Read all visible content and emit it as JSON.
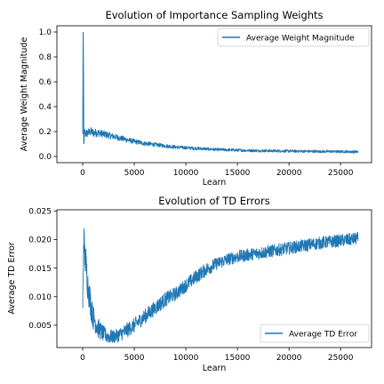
{
  "chart_data": [
    {
      "type": "line",
      "title": "Evolution of Importance Sampling Weights",
      "xlabel": "Learn",
      "ylabel": "Average Weight Magnitude",
      "xlim": [
        -2500,
        28000
      ],
      "ylim": [
        -0.05,
        1.05
      ],
      "xticks": [
        0,
        5000,
        10000,
        15000,
        20000,
        25000
      ],
      "xtick_labels": [
        "0",
        "5000",
        "10000",
        "15000",
        "20000",
        "25000"
      ],
      "yticks": [
        0.0,
        0.2,
        0.4,
        0.6,
        0.8,
        1.0
      ],
      "ytick_labels": [
        "0.0",
        "0.2",
        "0.4",
        "0.6",
        "0.8",
        "1.0"
      ],
      "grid": false,
      "legend": "top-right",
      "color": "#1f77b4",
      "series": [
        {
          "name": "Average Weight Magnitude",
          "x": [
            0,
            60,
            120,
            200,
            300,
            500,
            800,
            1000,
            1500,
            2000,
            2500,
            3000,
            3500,
            4000,
            5000,
            6000,
            7000,
            8000,
            9000,
            10000,
            11000,
            12000,
            13000,
            14000,
            15000,
            16000,
            17000,
            18000,
            19000,
            20000,
            21000,
            22000,
            23000,
            24000,
            25000,
            26000,
            26700
          ],
          "y": [
            0.18,
            1.0,
            0.1,
            0.2,
            0.18,
            0.19,
            0.2,
            0.19,
            0.19,
            0.18,
            0.17,
            0.16,
            0.15,
            0.14,
            0.12,
            0.105,
            0.095,
            0.085,
            0.075,
            0.07,
            0.065,
            0.06,
            0.055,
            0.053,
            0.05,
            0.048,
            0.046,
            0.045,
            0.044,
            0.043,
            0.042,
            0.041,
            0.04,
            0.04,
            0.039,
            0.038,
            0.037
          ],
          "noise": [
            0.0,
            0.0,
            0.0,
            0.03,
            0.035,
            0.035,
            0.035,
            0.035,
            0.032,
            0.03,
            0.028,
            0.026,
            0.024,
            0.022,
            0.02,
            0.018,
            0.016,
            0.015,
            0.014,
            0.013,
            0.013,
            0.012,
            0.012,
            0.012,
            0.012,
            0.011,
            0.011,
            0.011,
            0.011,
            0.011,
            0.011,
            0.011,
            0.011,
            0.011,
            0.011,
            0.011,
            0.011
          ]
        }
      ]
    },
    {
      "type": "line",
      "title": "Evolution of TD Errors",
      "xlabel": "Learn",
      "ylabel": "Average TD Error",
      "xlim": [
        -2500,
        28000
      ],
      "ylim": [
        0.0011,
        0.0252
      ],
      "xticks": [
        0,
        5000,
        10000,
        15000,
        20000,
        25000
      ],
      "xtick_labels": [
        "0",
        "5000",
        "10000",
        "15000",
        "20000",
        "25000"
      ],
      "yticks": [
        0.005,
        0.01,
        0.015,
        0.02,
        0.025
      ],
      "ytick_labels": [
        "0.005",
        "0.010",
        "0.015",
        "0.020",
        "0.025"
      ],
      "grid": false,
      "legend": "bottom-right",
      "color": "#1f77b4",
      "series": [
        {
          "name": "Average TD Error",
          "x": [
            0,
            100,
            200,
            300,
            500,
            800,
            1000,
            1500,
            2000,
            2500,
            3000,
            3500,
            4000,
            5000,
            6000,
            7000,
            8000,
            9000,
            10000,
            11000,
            12000,
            13000,
            14000,
            15000,
            16000,
            17000,
            18000,
            19000,
            20000,
            21000,
            22000,
            23000,
            24000,
            25000,
            26000,
            26700
          ],
          "y": [
            0.0075,
            0.021,
            0.017,
            0.016,
            0.012,
            0.0085,
            0.0065,
            0.0045,
            0.0035,
            0.003,
            0.003,
            0.0033,
            0.0038,
            0.005,
            0.0065,
            0.008,
            0.0095,
            0.0105,
            0.012,
            0.0135,
            0.0148,
            0.0158,
            0.0165,
            0.017,
            0.0173,
            0.0176,
            0.0179,
            0.0182,
            0.0185,
            0.0188,
            0.0191,
            0.0194,
            0.0196,
            0.0198,
            0.02,
            0.0202
          ],
          "noise": [
            0.002,
            0.003,
            0.003,
            0.003,
            0.0028,
            0.0025,
            0.0022,
            0.0018,
            0.0014,
            0.0012,
            0.0012,
            0.0012,
            0.0013,
            0.0013,
            0.0013,
            0.0013,
            0.0013,
            0.0012,
            0.0012,
            0.0012,
            0.0012,
            0.0011,
            0.0011,
            0.0011,
            0.0011,
            0.0011,
            0.0011,
            0.0011,
            0.0011,
            0.0011,
            0.0011,
            0.0011,
            0.0011,
            0.0011,
            0.0011,
            0.0011
          ]
        }
      ]
    }
  ]
}
